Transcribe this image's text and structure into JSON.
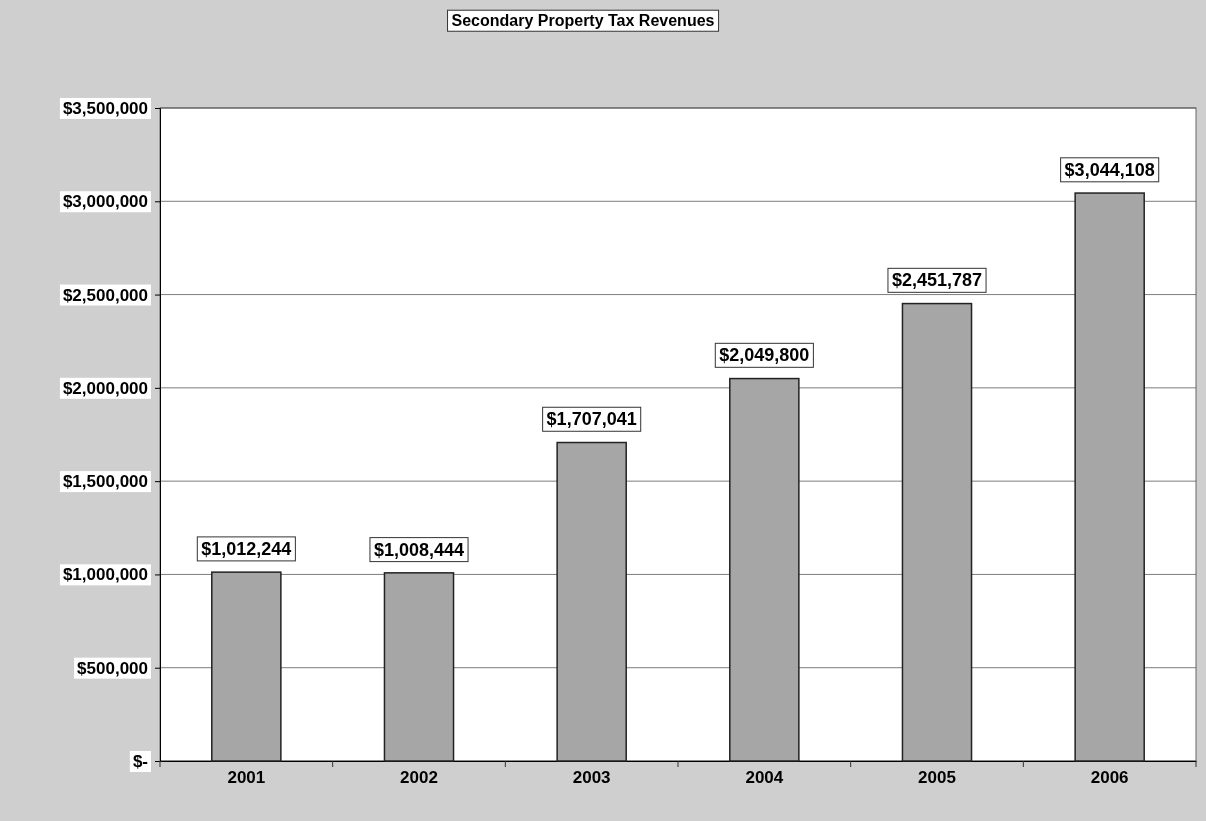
{
  "chart_data": {
    "type": "bar",
    "title": "Secondary Property Tax Revenues",
    "categories": [
      "2001",
      "2002",
      "2003",
      "2004",
      "2005",
      "2006"
    ],
    "values": [
      1012244,
      1008444,
      1707041,
      2049800,
      2451787,
      3044108
    ],
    "value_labels": [
      "$1,012,244",
      "$1,008,444",
      "$1,707,041",
      "$2,049,800",
      "$2,451,787",
      "$3,044,108"
    ],
    "color": "#a6a6a6",
    "ylim": [
      0,
      3500000
    ],
    "yticks": [
      {
        "value": 0,
        "label": "$-"
      },
      {
        "value": 500000,
        "label": "$500,000"
      },
      {
        "value": 1000000,
        "label": "$1,000,000"
      },
      {
        "value": 1500000,
        "label": "$1,500,000"
      },
      {
        "value": 2000000,
        "label": "$2,000,000"
      },
      {
        "value": 2500000,
        "label": "$2,500,000"
      },
      {
        "value": 3000000,
        "label": "$3,000,000"
      },
      {
        "value": 3500000,
        "label": "$3,500,000"
      }
    ],
    "grid": "y"
  }
}
